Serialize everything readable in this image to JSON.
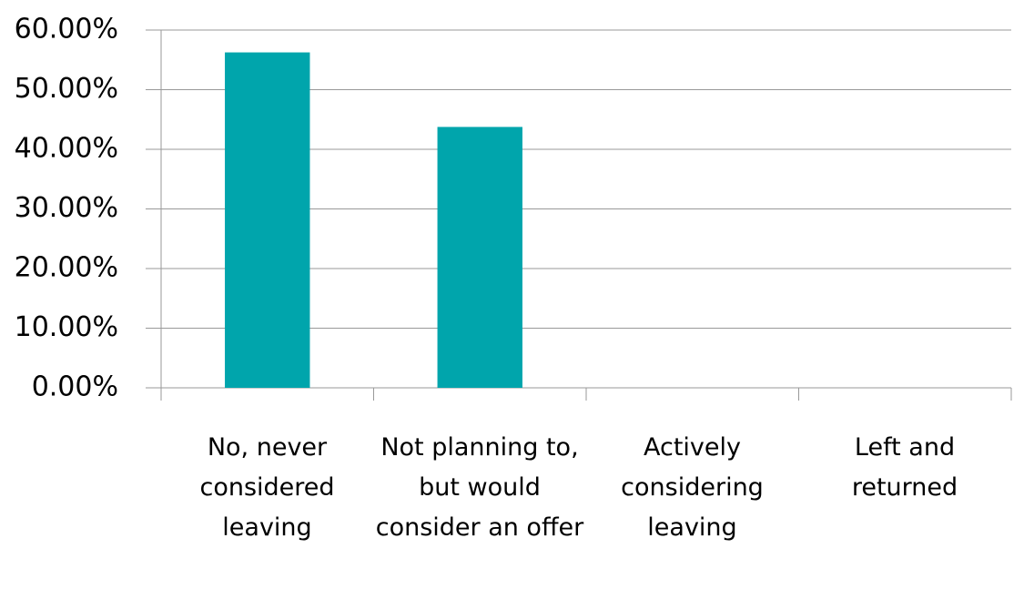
{
  "chart_data": {
    "type": "bar",
    "categories": [
      "No, never considered leaving",
      "Not planning to, but would consider an offer",
      "Actively considering leaving",
      "Left and returned"
    ],
    "values": [
      56.25,
      43.75,
      0,
      0
    ],
    "color": "#00a5ac",
    "ylim": [
      0,
      60
    ],
    "yticks": [
      {
        "value": 0,
        "label": "0.00%"
      },
      {
        "value": 10,
        "label": "10.00%"
      },
      {
        "value": 20,
        "label": "20.00%"
      },
      {
        "value": 30,
        "label": "30.00%"
      },
      {
        "value": 40,
        "label": "40.00%"
      },
      {
        "value": 50,
        "label": "50.00%"
      },
      {
        "value": 60,
        "label": "60.00%"
      }
    ],
    "grid": true
  }
}
